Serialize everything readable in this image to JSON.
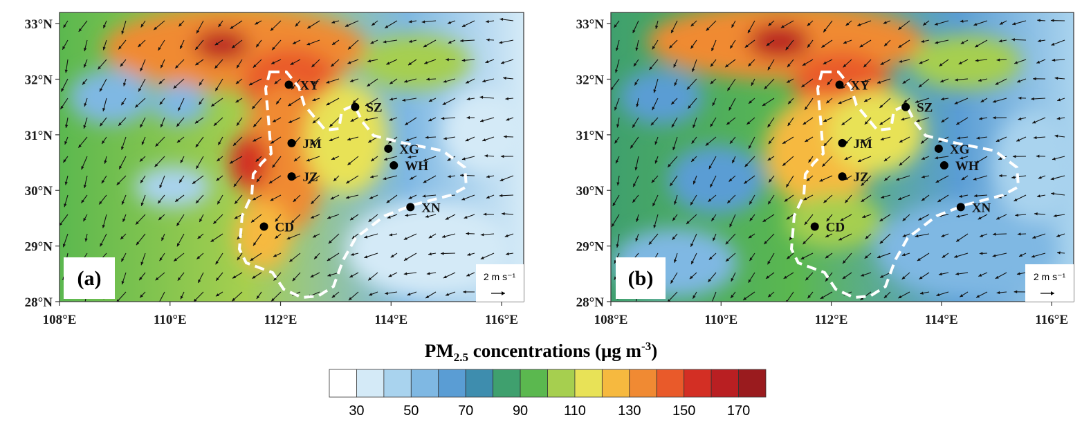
{
  "panels": [
    {
      "label": "(a)",
      "scale_text": "2 m s⁻¹",
      "cities": [
        {
          "name": "XY",
          "lon": 112.15,
          "lat": 31.9
        },
        {
          "name": "SZ",
          "lon": 113.35,
          "lat": 31.5
        },
        {
          "name": "JM",
          "lon": 112.2,
          "lat": 30.85
        },
        {
          "name": "XG",
          "lon": 113.95,
          "lat": 30.75
        },
        {
          "name": "WH",
          "lon": 114.05,
          "lat": 30.45
        },
        {
          "name": "JZ",
          "lon": 112.2,
          "lat": 30.25
        },
        {
          "name": "XN",
          "lon": 114.35,
          "lat": 29.7
        },
        {
          "name": "CD",
          "lon": 111.7,
          "lat": 29.35
        }
      ]
    },
    {
      "label": "(b)",
      "scale_text": "2 m s⁻¹",
      "cities": [
        {
          "name": "XY",
          "lon": 112.15,
          "lat": 31.9
        },
        {
          "name": "SZ",
          "lon": 113.35,
          "lat": 31.5
        },
        {
          "name": "JM",
          "lon": 112.2,
          "lat": 30.85
        },
        {
          "name": "XG",
          "lon": 113.95,
          "lat": 30.75
        },
        {
          "name": "WH",
          "lon": 114.05,
          "lat": 30.45
        },
        {
          "name": "JZ",
          "lon": 112.2,
          "lat": 30.25
        },
        {
          "name": "XN",
          "lon": 114.35,
          "lat": 29.7
        },
        {
          "name": "CD",
          "lon": 111.7,
          "lat": 29.35
        }
      ]
    }
  ],
  "axes": {
    "lon_ticks": [
      "108°E",
      "110°E",
      "112°E",
      "114°E",
      "116°E"
    ],
    "lat_ticks": [
      "33°N",
      "32°N",
      "31°N",
      "30°N",
      "29°N",
      "28°N"
    ],
    "lon_range": [
      108,
      116.4
    ],
    "lat_range": [
      28,
      33.2
    ]
  },
  "colorbar": {
    "title_prefix": "PM",
    "title_sub": "2.5",
    "title_suffix": " concentrations (μg m",
    "title_sup": "-3",
    "title_end": ")",
    "tick_labels": [
      "30",
      "50",
      "70",
      "90",
      "110",
      "130",
      "150",
      "170"
    ],
    "colors": [
      "#ffffff",
      "#d4eaf7",
      "#a9d3ee",
      "#7fb8e3",
      "#5a9dd4",
      "#3e8dae",
      "#3fa06e",
      "#5bb84f",
      "#a6cf4f",
      "#e8e257",
      "#f6b93f",
      "#f08a33",
      "#e95a2a",
      "#d32f24",
      "#b91f22",
      "#9a1b1e"
    ]
  }
}
